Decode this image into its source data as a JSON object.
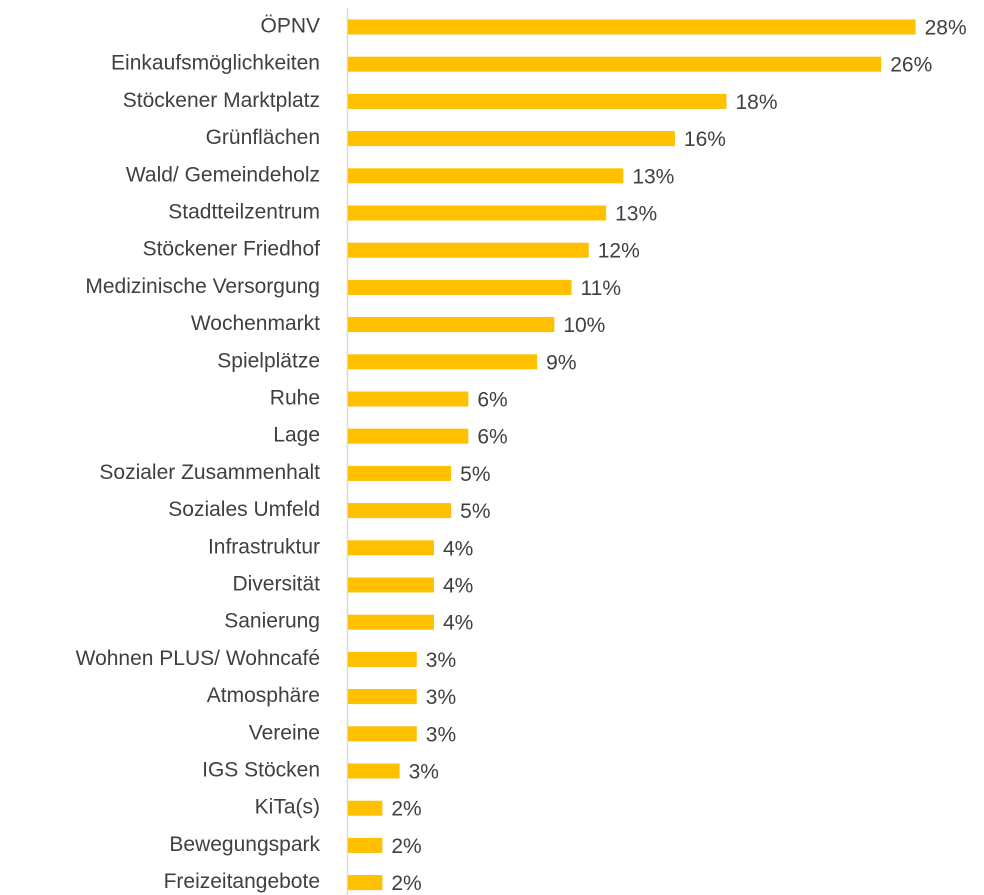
{
  "chart_data": {
    "type": "bar",
    "orientation": "horizontal",
    "color": "#ffc000",
    "categories": [
      "ÖPNV",
      "Einkaufsmöglichkeiten",
      "Stöckener Marktplatz",
      "Grünflächen",
      "Wald/ Gemeindeholz",
      "Stadtteilzentrum",
      "Stöckener Friedhof",
      "Medizinische Versorgung",
      "Wochenmarkt",
      "Spielplätze",
      "Ruhe",
      "Lage",
      "Sozialer Zusammenhalt",
      "Soziales Umfeld",
      "Infrastruktur",
      "Diversität",
      "Sanierung",
      "Wohnen PLUS/ Wohncafé",
      "Atmosphäre",
      "Vereine",
      "IGS Stöcken",
      "KiTa(s)",
      "Bewegungspark",
      "Freizeitangebote"
    ],
    "values": [
      27.73,
      26.05,
      18.49,
      15.97,
      13.45,
      12.61,
      11.76,
      10.92,
      10.08,
      9.24,
      5.88,
      5.88,
      5.04,
      5.04,
      4.2,
      4.2,
      4.2,
      3.36,
      3.36,
      3.36,
      2.52,
      1.68,
      1.68,
      1.68
    ],
    "value_labels": [
      "28%",
      "26%",
      "18%",
      "16%",
      "13%",
      "13%",
      "12%",
      "11%",
      "10%",
      "9%",
      "6%",
      "6%",
      "5%",
      "5%",
      "4%",
      "4%",
      "4%",
      "3%",
      "3%",
      "3%",
      "3%",
      "2%",
      "2%",
      "2%"
    ]
  }
}
